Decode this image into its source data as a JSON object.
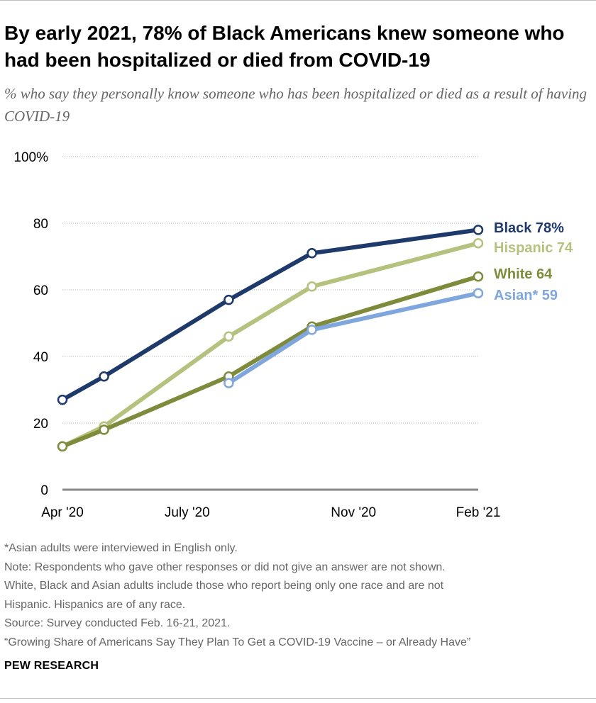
{
  "title": "By early 2021, 78% of Black Americans knew someone who had been hospitalized or died from COVID-19",
  "subtitle": "% who say they personally know someone who has been hospitalized or died as a result of having COVID-19",
  "chart_data": {
    "type": "line",
    "title": "By early 2021, 78% of Black Americans knew someone who had been hospitalized or died from COVID-19",
    "xlabel": "",
    "ylabel": "",
    "ylim": [
      0,
      100
    ],
    "yticks": [
      {
        "value": 0,
        "label": "0"
      },
      {
        "value": 20,
        "label": "20"
      },
      {
        "value": 40,
        "label": "40"
      },
      {
        "value": 60,
        "label": "60"
      },
      {
        "value": 80,
        "label": "80"
      },
      {
        "value": 100,
        "label": "100%"
      }
    ],
    "xticks": [
      {
        "t": 0,
        "label": "Apr '20"
      },
      {
        "t": 3,
        "label": "July '20"
      },
      {
        "t": 7,
        "label": "Nov '20"
      },
      {
        "t": 10,
        "label": "Feb '21"
      }
    ],
    "grid": true,
    "series": [
      {
        "name": "Black",
        "end_label": "Black 78%",
        "color": "#1e3a6b",
        "x": [
          0,
          1,
          4,
          6,
          10
        ],
        "values": [
          27,
          34,
          57,
          71,
          78
        ]
      },
      {
        "name": "Hispanic",
        "end_label": "Hispanic 74",
        "color": "#b5c27e",
        "x": [
          0,
          1,
          4,
          6,
          10
        ],
        "values": [
          13,
          19,
          46,
          61,
          74
        ]
      },
      {
        "name": "White",
        "end_label": "White 64",
        "color": "#7e8b3b",
        "x": [
          0,
          1,
          4,
          6,
          10
        ],
        "values": [
          13,
          18,
          34,
          49,
          64
        ]
      },
      {
        "name": "Asian",
        "end_label": "Asian* 59",
        "color": "#7fa7dd",
        "x": [
          4,
          6,
          10
        ],
        "values": [
          32,
          48,
          59
        ]
      }
    ]
  },
  "notes": [
    "*Asian adults were interviewed in English only.",
    "Note: Respondents who gave other responses or did not give an answer are not shown.",
    "White, Black and Asian adults include those who report being only one race and are not",
    "Hispanic. Hispanics are of any race.",
    "Source: Survey conducted Feb. 16-21, 2021.",
    "“Growing Share of Americans Say They Plan To Get a COVID-19 Vaccine – or Already Have”"
  ],
  "brand": "PEW RESEARCH"
}
